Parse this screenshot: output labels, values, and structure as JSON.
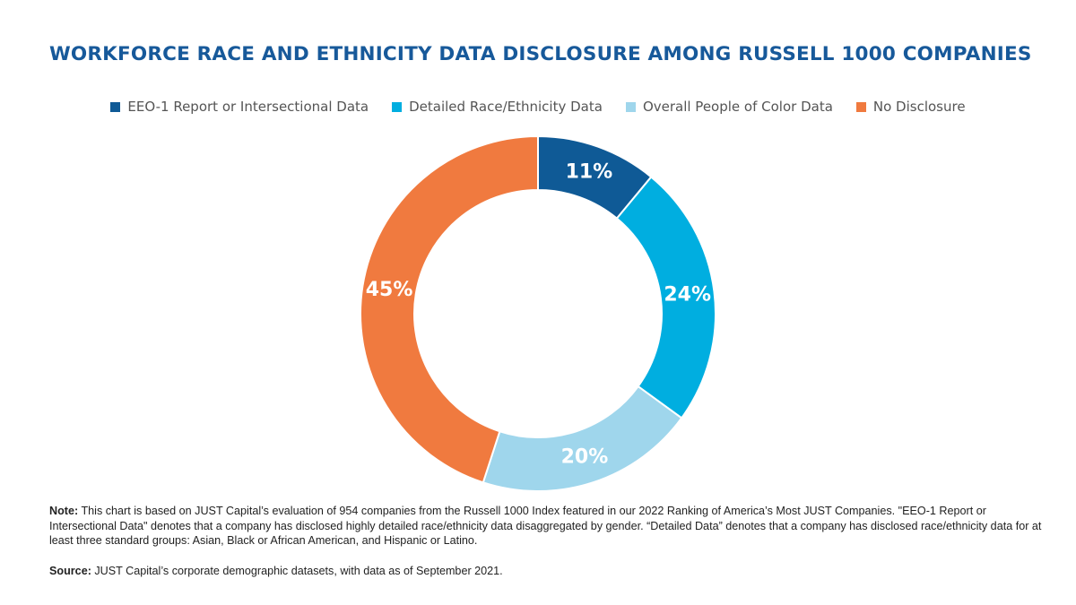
{
  "chart_data": {
    "type": "pie",
    "variant": "donut",
    "title": "WORKFORCE RACE AND ETHNICITY DATA DISCLOSURE AMONG RUSSELL 1000 COMPANIES",
    "legend_position": "top",
    "categories": [
      "EEO-1 Report or Intersectional Data",
      "Detailed Race/Ethnicity Data",
      "Overall People of Color Data",
      "No Disclosure"
    ],
    "values": [
      11,
      24,
      20,
      45
    ],
    "labels": [
      "11%",
      "24%",
      "20%",
      "45%"
    ],
    "colors": [
      "#0f5a96",
      "#00aee0",
      "#9fd6ec",
      "#f07a3f"
    ]
  },
  "notes": {
    "note_label": "Note:",
    "note_text": " This chart is based on JUST Capital’s evaluation of 954 companies from the Russell 1000 Index featured in our 2022 Ranking of America’s Most JUST Companies. \"EEO-1 Report or Intersectional Data\" denotes that a company has disclosed highly detailed race/ethnicity data disaggregated by gender. “Detailed Data” denotes that a company has disclosed race/ethnicity data for at least three standard groups: Asian, Black or African American, and Hispanic or Latino.",
    "source_label": "Source:",
    "source_text": " JUST Capital’s corporate demographic datasets, with data as of September 2021."
  }
}
